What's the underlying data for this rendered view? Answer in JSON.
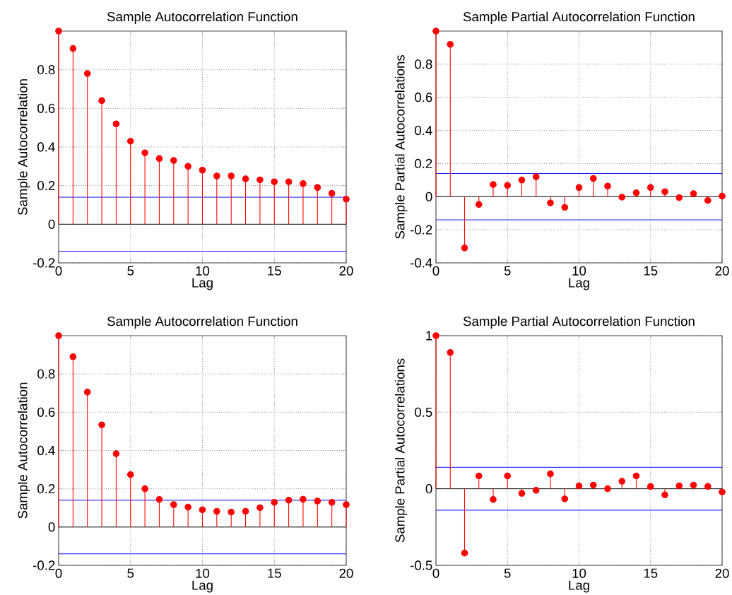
{
  "chart_data": [
    {
      "type": "lollipop",
      "title": "Sample Autocorrelation Function",
      "xlabel": "Lag",
      "ylabel": "Sample Autocorrelation",
      "x": [
        0,
        1,
        2,
        3,
        4,
        5,
        6,
        7,
        8,
        9,
        10,
        11,
        12,
        13,
        14,
        15,
        16,
        17,
        18,
        19,
        20
      ],
      "values": [
        1.0,
        0.91,
        0.78,
        0.64,
        0.52,
        0.43,
        0.37,
        0.34,
        0.33,
        0.3,
        0.28,
        0.25,
        0.25,
        0.235,
        0.23,
        0.22,
        0.22,
        0.21,
        0.19,
        0.16,
        0.13
      ],
      "color": "#ff0000",
      "marker": "circle",
      "grid": true,
      "xlim": [
        0,
        20
      ],
      "ylim": [
        -0.2,
        1
      ],
      "xticks": [
        0,
        5,
        10,
        15,
        20
      ],
      "yticks": [
        -0.2,
        0,
        0.2,
        0.4,
        0.6,
        0.8
      ],
      "ref_lines": [
        {
          "axis": "y",
          "value": 0.14,
          "color": "#0000ff"
        },
        {
          "axis": "y",
          "value": -0.14,
          "color": "#0000ff"
        },
        {
          "axis": "y",
          "value": 0,
          "color": "#000000"
        }
      ]
    },
    {
      "type": "lollipop",
      "title": "Sample Partial Autocorrelation Function",
      "xlabel": "Lag",
      "ylabel": "Sample Partial Autocorrelations",
      "x": [
        0,
        1,
        2,
        3,
        4,
        5,
        6,
        7,
        8,
        9,
        10,
        11,
        12,
        13,
        14,
        15,
        16,
        17,
        18,
        19,
        20
      ],
      "values": [
        1.0,
        0.92,
        -0.31,
        -0.047,
        0.073,
        0.068,
        0.1,
        0.12,
        -0.038,
        -0.065,
        0.055,
        0.11,
        0.064,
        -0.003,
        0.023,
        0.055,
        0.03,
        -0.006,
        0.018,
        -0.023,
        0.003
      ],
      "color": "#ff0000",
      "marker": "circle",
      "grid": true,
      "xlim": [
        0,
        20
      ],
      "ylim": [
        -0.4,
        1
      ],
      "xticks": [
        0,
        5,
        10,
        15,
        20
      ],
      "yticks": [
        -0.4,
        -0.2,
        0,
        0.2,
        0.4,
        0.6,
        0.8
      ],
      "ref_lines": [
        {
          "axis": "y",
          "value": 0.14,
          "color": "#0000ff"
        },
        {
          "axis": "y",
          "value": -0.14,
          "color": "#0000ff"
        },
        {
          "axis": "y",
          "value": 0,
          "color": "#000000"
        }
      ]
    },
    {
      "type": "lollipop",
      "title": "Sample Autocorrelation Function",
      "xlabel": "Lag",
      "ylabel": "Sample Autocorrelation",
      "x": [
        0,
        1,
        2,
        3,
        4,
        5,
        6,
        7,
        8,
        9,
        10,
        11,
        12,
        13,
        14,
        15,
        16,
        17,
        18,
        19,
        20
      ],
      "values": [
        1.0,
        0.89,
        0.705,
        0.534,
        0.383,
        0.274,
        0.2,
        0.144,
        0.117,
        0.104,
        0.09,
        0.082,
        0.078,
        0.082,
        0.101,
        0.129,
        0.14,
        0.145,
        0.136,
        0.129,
        0.117
      ],
      "color": "#ff0000",
      "marker": "circle",
      "grid": true,
      "xlim": [
        0,
        20
      ],
      "ylim": [
        -0.2,
        1
      ],
      "xticks": [
        0,
        5,
        10,
        15,
        20
      ],
      "yticks": [
        -0.2,
        0,
        0.2,
        0.4,
        0.6,
        0.8
      ],
      "ref_lines": [
        {
          "axis": "y",
          "value": 0.14,
          "color": "#0000ff"
        },
        {
          "axis": "y",
          "value": -0.14,
          "color": "#0000ff"
        },
        {
          "axis": "y",
          "value": 0,
          "color": "#000000"
        }
      ]
    },
    {
      "type": "lollipop",
      "title": "Sample Partial Autocorrelation Function",
      "xlabel": "Lag",
      "ylabel": "Sample Partial Autocorrelations",
      "x": [
        0,
        1,
        2,
        3,
        4,
        5,
        6,
        7,
        8,
        9,
        10,
        11,
        12,
        13,
        14,
        15,
        16,
        17,
        18,
        19,
        20
      ],
      "values": [
        1.0,
        0.89,
        -0.42,
        0.084,
        -0.07,
        0.084,
        -0.03,
        -0.01,
        0.097,
        -0.066,
        0.019,
        0.024,
        0.0,
        0.049,
        0.084,
        0.015,
        -0.04,
        0.019,
        0.024,
        0.015,
        -0.021
      ],
      "color": "#ff0000",
      "marker": "circle",
      "grid": true,
      "xlim": [
        0,
        20
      ],
      "ylim": [
        -0.5,
        1
      ],
      "xticks": [
        0,
        5,
        10,
        15,
        20
      ],
      "yticks": [
        -0.5,
        0,
        0.5,
        1
      ],
      "ref_lines": [
        {
          "axis": "y",
          "value": 0.14,
          "color": "#0000ff"
        },
        {
          "axis": "y",
          "value": -0.14,
          "color": "#0000ff"
        },
        {
          "axis": "y",
          "value": 0,
          "color": "#000000"
        }
      ]
    }
  ]
}
